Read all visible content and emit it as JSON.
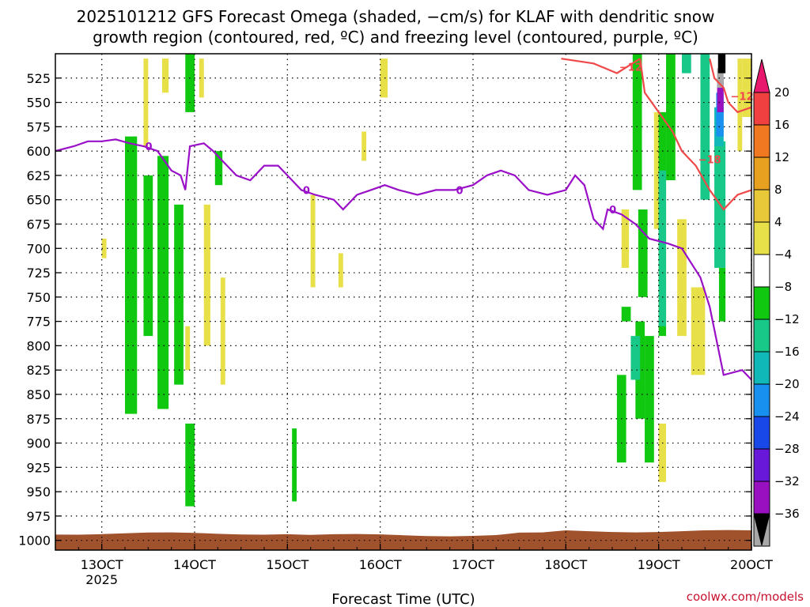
{
  "chart_data": {
    "type": "heatmap",
    "title_line1": "2025101212 GFS Forecast Omega (shaded, −cm/s) for KLAF with dendritic snow",
    "title_line2": "growth region (contoured, red, ºC) and freezing level (contoured, purple, ºC)",
    "xlabel": "Forecast Time (UTC)",
    "credit": "coolwx.com/models",
    "x_ticks": [
      {
        "t": 13,
        "label": "13OCT",
        "sub": "2025"
      },
      {
        "t": 14,
        "label": "14OCT",
        "sub": ""
      },
      {
        "t": 15,
        "label": "15OCT",
        "sub": ""
      },
      {
        "t": 16,
        "label": "16OCT",
        "sub": ""
      },
      {
        "t": 17,
        "label": "17OCT",
        "sub": ""
      },
      {
        "t": 18,
        "label": "18OCT",
        "sub": ""
      },
      {
        "t": 19,
        "label": "19OCT",
        "sub": ""
      },
      {
        "t": 20,
        "label": "20OCT",
        "sub": ""
      }
    ],
    "xlim": [
      12.5,
      20
    ],
    "y_levels": [
      "525",
      "550",
      "575",
      "600",
      "625",
      "650",
      "675",
      "700",
      "725",
      "750",
      "775",
      "800",
      "825",
      "850",
      "875",
      "900",
      "925",
      "950",
      "975",
      "1000"
    ],
    "ylim": [
      1010,
      500
    ],
    "grid": true,
    "colorbar": {
      "labels": [
        "20",
        "16",
        "12",
        "8",
        "4",
        "−4",
        "−8",
        "−12",
        "−16",
        "−20",
        "−24",
        "−28",
        "−32",
        "−36"
      ],
      "colors": [
        "#e8186e",
        "#f04040",
        "#f07820",
        "#e8a020",
        "#e8c838",
        "#e8e048",
        "#ffffff",
        "#10c810",
        "#18c888",
        "#10b8b8",
        "#1890f0",
        "#1848e8",
        "#6818d8",
        "#9810c0",
        "#a8a8a8",
        "#000000"
      ]
    },
    "freezing_level": {
      "label": "0",
      "color": "#9a10c8",
      "points": [
        [
          12.5,
          600
        ],
        [
          12.7,
          595
        ],
        [
          12.85,
          590
        ],
        [
          13.0,
          590
        ],
        [
          13.15,
          588
        ],
        [
          13.3,
          592
        ],
        [
          13.45,
          595
        ],
        [
          13.6,
          600
        ],
        [
          13.75,
          620
        ],
        [
          13.85,
          625
        ],
        [
          13.9,
          640
        ],
        [
          13.95,
          595
        ],
        [
          14.1,
          592
        ],
        [
          14.2,
          600
        ],
        [
          14.3,
          610
        ],
        [
          14.45,
          625
        ],
        [
          14.6,
          630
        ],
        [
          14.75,
          615
        ],
        [
          14.9,
          615
        ],
        [
          15.0,
          625
        ],
        [
          15.15,
          640
        ],
        [
          15.3,
          645
        ],
        [
          15.5,
          650
        ],
        [
          15.6,
          660
        ],
        [
          15.75,
          645
        ],
        [
          15.9,
          640
        ],
        [
          16.05,
          635
        ],
        [
          16.2,
          640
        ],
        [
          16.4,
          645
        ],
        [
          16.6,
          640
        ],
        [
          16.8,
          640
        ],
        [
          17.0,
          635
        ],
        [
          17.15,
          625
        ],
        [
          17.3,
          620
        ],
        [
          17.45,
          625
        ],
        [
          17.6,
          640
        ],
        [
          17.8,
          645
        ],
        [
          18.0,
          640
        ],
        [
          18.1,
          625
        ],
        [
          18.2,
          635
        ],
        [
          18.3,
          670
        ],
        [
          18.4,
          680
        ],
        [
          18.45,
          660
        ],
        [
          18.6,
          665
        ],
        [
          18.75,
          675
        ],
        [
          18.9,
          690
        ],
        [
          19.1,
          695
        ],
        [
          19.25,
          700
        ],
        [
          19.45,
          730
        ],
        [
          19.55,
          760
        ],
        [
          19.7,
          830
        ],
        [
          19.9,
          825
        ],
        [
          20.0,
          835
        ]
      ]
    },
    "dgz_contours": {
      "color": "#f04848",
      "lines": [
        {
          "label": "−12",
          "points": [
            [
              17.95,
              505
            ],
            [
              18.3,
              510
            ],
            [
              18.55,
              520
            ],
            [
              18.8,
              505
            ]
          ]
        },
        {
          "label": "−18",
          "points": [
            [
              18.8,
              505
            ],
            [
              18.85,
              540
            ],
            [
              19.0,
              560
            ],
            [
              19.15,
              580
            ],
            [
              19.25,
              600
            ],
            [
              19.4,
              615
            ],
            [
              19.55,
              640
            ],
            [
              19.7,
              660
            ],
            [
              19.85,
              645
            ],
            [
              20.0,
              640
            ]
          ]
        },
        {
          "label": "−12",
          "points": [
            [
              19.55,
              505
            ],
            [
              19.6,
              525
            ],
            [
              19.7,
              535
            ],
            [
              19.75,
              550
            ],
            [
              19.85,
              560
            ],
            [
              20.0,
              555
            ]
          ]
        }
      ]
    },
    "omega_regions": [
      {
        "cat": "green",
        "t0": 13.25,
        "t1": 13.38,
        "p0": 585,
        "p1": 870
      },
      {
        "cat": "green",
        "t0": 13.45,
        "t1": 13.55,
        "p0": 625,
        "p1": 790
      },
      {
        "cat": "green",
        "t0": 13.6,
        "t1": 13.72,
        "p0": 605,
        "p1": 865
      },
      {
        "cat": "green",
        "t0": 13.78,
        "t1": 13.88,
        "p0": 655,
        "p1": 840
      },
      {
        "cat": "green",
        "t0": 13.9,
        "t1": 14.0,
        "p0": 500,
        "p1": 560
      },
      {
        "cat": "green",
        "t0": 13.9,
        "t1": 14.0,
        "p0": 880,
        "p1": 965
      },
      {
        "cat": "green",
        "t0": 14.22,
        "t1": 14.3,
        "p0": 600,
        "p1": 635
      },
      {
        "cat": "green",
        "t0": 15.05,
        "t1": 15.1,
        "p0": 885,
        "p1": 960
      },
      {
        "cat": "yellow",
        "t0": 13.0,
        "t1": 13.05,
        "p0": 690,
        "p1": 710
      },
      {
        "cat": "yellow",
        "t0": 13.45,
        "t1": 13.5,
        "p0": 505,
        "p1": 595
      },
      {
        "cat": "yellow",
        "t0": 13.65,
        "t1": 13.72,
        "p0": 505,
        "p1": 540
      },
      {
        "cat": "yellow",
        "t0": 13.9,
        "t1": 13.95,
        "p0": 780,
        "p1": 825
      },
      {
        "cat": "yellow",
        "t0": 14.05,
        "t1": 14.1,
        "p0": 505,
        "p1": 545
      },
      {
        "cat": "yellow",
        "t0": 14.1,
        "t1": 14.17,
        "p0": 655,
        "p1": 800
      },
      {
        "cat": "yellow",
        "t0": 14.28,
        "t1": 14.33,
        "p0": 730,
        "p1": 840
      },
      {
        "cat": "yellow",
        "t0": 15.25,
        "t1": 15.3,
        "p0": 645,
        "p1": 740
      },
      {
        "cat": "yellow",
        "t0": 15.55,
        "t1": 15.6,
        "p0": 705,
        "p1": 740
      },
      {
        "cat": "yellow",
        "t0": 15.8,
        "t1": 15.85,
        "p0": 580,
        "p1": 610
      },
      {
        "cat": "yellow",
        "t0": 16.0,
        "t1": 16.08,
        "p0": 505,
        "p1": 545
      },
      {
        "cat": "yellow",
        "t0": 18.6,
        "t1": 18.68,
        "p0": 660,
        "p1": 720
      },
      {
        "cat": "yellow",
        "t0": 18.95,
        "t1": 19.05,
        "p0": 560,
        "p1": 680
      },
      {
        "cat": "yellow",
        "t0": 19.0,
        "t1": 19.08,
        "p0": 880,
        "p1": 940
      },
      {
        "cat": "yellow",
        "t0": 19.2,
        "t1": 19.3,
        "p0": 670,
        "p1": 790
      },
      {
        "cat": "yellow",
        "t0": 19.35,
        "t1": 19.5,
        "p0": 740,
        "p1": 830
      },
      {
        "cat": "yellow",
        "t0": 19.85,
        "t1": 19.9,
        "p0": 505,
        "p1": 600
      },
      {
        "cat": "yellow",
        "t0": 19.9,
        "t1": 20.0,
        "p0": 505,
        "p1": 565
      },
      {
        "cat": "green",
        "t0": 18.55,
        "t1": 18.65,
        "p0": 830,
        "p1": 920
      },
      {
        "cat": "green",
        "t0": 18.6,
        "t1": 18.7,
        "p0": 760,
        "p1": 775
      },
      {
        "cat": "green",
        "t0": 18.72,
        "t1": 18.82,
        "p0": 500,
        "p1": 640
      },
      {
        "cat": "green",
        "t0": 18.75,
        "t1": 18.85,
        "p0": 775,
        "p1": 875
      },
      {
        "cat": "green",
        "t0": 18.78,
        "t1": 18.88,
        "p0": 660,
        "p1": 750
      },
      {
        "cat": "green",
        "t0": 18.85,
        "t1": 18.95,
        "p0": 790,
        "p1": 920
      },
      {
        "cat": "green",
        "t0": 19.0,
        "t1": 19.08,
        "p0": 560,
        "p1": 790
      },
      {
        "cat": "green",
        "t0": 19.08,
        "t1": 19.18,
        "p0": 500,
        "p1": 630
      },
      {
        "cat": "green",
        "t0": 19.65,
        "t1": 19.72,
        "p0": 720,
        "p1": 775
      },
      {
        "cat": "teal",
        "t0": 18.7,
        "t1": 18.8,
        "p0": 790,
        "p1": 835
      },
      {
        "cat": "teal",
        "t0": 19.0,
        "t1": 19.08,
        "p0": 620,
        "p1": 780
      },
      {
        "cat": "teal",
        "t0": 19.25,
        "t1": 19.35,
        "p0": 500,
        "p1": 520
      },
      {
        "cat": "teal",
        "t0": 19.45,
        "t1": 19.55,
        "p0": 500,
        "p1": 650
      },
      {
        "cat": "teal",
        "t0": 19.6,
        "t1": 19.72,
        "p0": 590,
        "p1": 720
      },
      {
        "cat": "cyan",
        "t0": 19.6,
        "t1": 19.7,
        "p0": 555,
        "p1": 595
      },
      {
        "cat": "blue",
        "t0": 19.62,
        "t1": 19.7,
        "p0": 540,
        "p1": 585
      },
      {
        "cat": "purple",
        "t0": 19.63,
        "t1": 19.7,
        "p0": 525,
        "p1": 560
      },
      {
        "cat": "gray",
        "t0": 19.63,
        "t1": 19.7,
        "p0": 515,
        "p1": 535
      },
      {
        "cat": "black",
        "t0": 19.64,
        "t1": 19.72,
        "p0": 500,
        "p1": 520
      }
    ],
    "surface": {
      "color": "#a0522d",
      "p_top": 993
    }
  }
}
